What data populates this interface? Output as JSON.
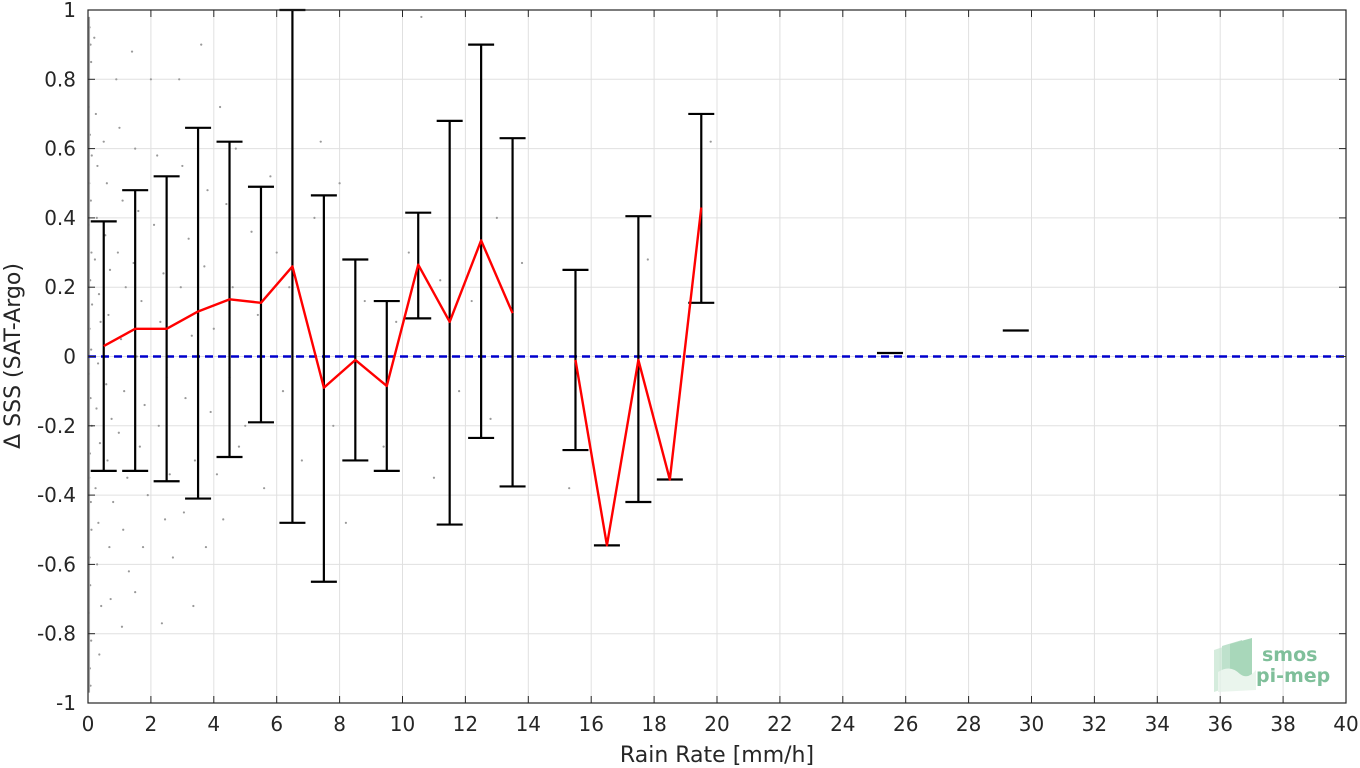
{
  "chart_data": {
    "type": "scatter",
    "xlabel": "Rain Rate [mm/h]",
    "ylabel": "Δ SSS (SAT-Argo)",
    "xlim": [
      0,
      40
    ],
    "ylim": [
      -1,
      1
    ],
    "xticks": [
      0,
      2,
      4,
      6,
      8,
      10,
      12,
      14,
      16,
      18,
      20,
      22,
      24,
      26,
      28,
      30,
      32,
      34,
      36,
      38,
      40
    ],
    "yticks": [
      -1,
      -0.8,
      -0.6,
      -0.4,
      -0.2,
      0,
      0.2,
      0.4,
      0.6,
      0.8,
      1
    ],
    "ytick_labels": [
      "-1",
      "-0.8",
      "-0.6",
      "-0.4",
      "-0.2",
      "0",
      "0.2",
      "0.4",
      "0.6",
      "0.8",
      "1"
    ],
    "grid": true,
    "reference_line": {
      "y": 0,
      "color": "#0000cc",
      "style": "dashed"
    },
    "colors": {
      "mean_line": "#ff0000",
      "error_bar": "#000000",
      "scatter": "#999999",
      "axis": "#262626",
      "grid": "#e0e0e0"
    },
    "error_bars": [
      {
        "x": 0.5,
        "mean": 0.03,
        "low": -0.33,
        "high": 0.39
      },
      {
        "x": 1.5,
        "mean": 0.08,
        "low": -0.33,
        "high": 0.48
      },
      {
        "x": 2.5,
        "mean": 0.08,
        "low": -0.36,
        "high": 0.52
      },
      {
        "x": 3.5,
        "mean": 0.13,
        "low": -0.41,
        "high": 0.66
      },
      {
        "x": 4.5,
        "mean": 0.165,
        "low": -0.29,
        "high": 0.62
      },
      {
        "x": 5.5,
        "mean": 0.155,
        "low": -0.19,
        "high": 0.49
      },
      {
        "x": 6.5,
        "mean": 0.26,
        "low": -0.48,
        "high": 1.0
      },
      {
        "x": 7.5,
        "mean": -0.09,
        "low": -0.65,
        "high": 0.465
      },
      {
        "x": 8.5,
        "mean": -0.01,
        "low": -0.3,
        "high": 0.28
      },
      {
        "x": 9.5,
        "mean": -0.085,
        "low": -0.33,
        "high": 0.16
      },
      {
        "x": 10.5,
        "mean": 0.265,
        "low": 0.11,
        "high": 0.415
      },
      {
        "x": 11.5,
        "mean": 0.1,
        "low": -0.485,
        "high": 0.68
      },
      {
        "x": 12.5,
        "mean": 0.335,
        "low": -0.235,
        "high": 0.9
      },
      {
        "x": 13.5,
        "mean": 0.125,
        "low": -0.375,
        "high": 0.63
      },
      {
        "x": 15.5,
        "mean": -0.01,
        "low": -0.27,
        "high": 0.25
      },
      {
        "x": 16.5,
        "mean": -0.545,
        "low": -0.545,
        "high": -0.545
      },
      {
        "x": 17.5,
        "mean": -0.01,
        "low": -0.42,
        "high": 0.405
      },
      {
        "x": 18.5,
        "mean": -0.355,
        "low": -0.355,
        "high": -0.355
      },
      {
        "x": 19.5,
        "mean": 0.43,
        "low": 0.155,
        "high": 0.7
      },
      {
        "x": 25.5,
        "mean": 0.01,
        "low": 0.01,
        "high": 0.01
      },
      {
        "x": 29.5,
        "mean": 0.075,
        "low": 0.075,
        "high": 0.075
      }
    ],
    "mean_line_segments": [
      [
        0,
        1,
        2,
        3,
        4,
        5,
        6,
        7,
        8,
        9,
        10,
        11,
        12,
        13
      ],
      [
        14,
        15,
        16,
        17,
        18
      ]
    ],
    "scatter_points": [
      [
        0.05,
        0.95
      ],
      [
        0.08,
        0.9
      ],
      [
        0.1,
        0.85
      ],
      [
        0.03,
        0.72
      ],
      [
        0.06,
        0.64
      ],
      [
        0.12,
        0.58
      ],
      [
        0.04,
        0.5
      ],
      [
        0.09,
        0.45
      ],
      [
        0.02,
        0.38
      ],
      [
        0.11,
        0.3
      ],
      [
        0.07,
        0.22
      ],
      [
        0.13,
        0.15
      ],
      [
        0.05,
        0.08
      ],
      [
        0.1,
        0.02
      ],
      [
        0.03,
        -0.05
      ],
      [
        0.08,
        -0.12
      ],
      [
        0.12,
        -0.2
      ],
      [
        0.06,
        -0.28
      ],
      [
        0.04,
        -0.35
      ],
      [
        0.09,
        -0.42
      ],
      [
        0.11,
        -0.5
      ],
      [
        0.05,
        -0.58
      ],
      [
        0.07,
        -0.66
      ],
      [
        0.03,
        -0.74
      ],
      [
        0.1,
        -0.82
      ],
      [
        0.06,
        -0.9
      ],
      [
        0.08,
        -0.95
      ],
      [
        0.2,
        0.92
      ],
      [
        0.25,
        0.7
      ],
      [
        0.3,
        0.55
      ],
      [
        0.28,
        0.4
      ],
      [
        0.22,
        0.28
      ],
      [
        0.35,
        0.18
      ],
      [
        0.4,
        0.1
      ],
      [
        0.32,
        -0.02
      ],
      [
        0.27,
        -0.15
      ],
      [
        0.38,
        -0.25
      ],
      [
        0.24,
        -0.38
      ],
      [
        0.33,
        -0.48
      ],
      [
        0.29,
        -0.6
      ],
      [
        0.42,
        -0.72
      ],
      [
        0.36,
        -0.86
      ],
      [
        0.5,
        0.62
      ],
      [
        0.6,
        0.5
      ],
      [
        0.55,
        0.35
      ],
      [
        0.7,
        0.25
      ],
      [
        0.65,
        0.12
      ],
      [
        0.58,
        -0.08
      ],
      [
        0.75,
        -0.18
      ],
      [
        0.62,
        -0.3
      ],
      [
        0.8,
        -0.42
      ],
      [
        0.68,
        -0.55
      ],
      [
        0.72,
        -0.7
      ],
      [
        0.9,
        0.8
      ],
      [
        1.0,
        0.66
      ],
      [
        1.1,
        0.45
      ],
      [
        0.95,
        0.3
      ],
      [
        1.2,
        0.2
      ],
      [
        1.05,
        0.05
      ],
      [
        1.15,
        -0.1
      ],
      [
        0.98,
        -0.22
      ],
      [
        1.25,
        -0.35
      ],
      [
        1.12,
        -0.5
      ],
      [
        1.3,
        -0.62
      ],
      [
        1.08,
        -0.78
      ],
      [
        1.4,
        0.88
      ],
      [
        1.5,
        0.6
      ],
      [
        1.6,
        0.42
      ],
      [
        1.45,
        0.27
      ],
      [
        1.7,
        0.16
      ],
      [
        1.55,
        0.0
      ],
      [
        1.8,
        -0.14
      ],
      [
        1.65,
        -0.26
      ],
      [
        1.9,
        -0.4
      ],
      [
        1.75,
        -0.55
      ],
      [
        1.5,
        -0.68
      ],
      [
        2.0,
        0.8
      ],
      [
        2.2,
        0.58
      ],
      [
        2.1,
        0.38
      ],
      [
        2.4,
        0.24
      ],
      [
        2.3,
        0.1
      ],
      [
        2.5,
        -0.06
      ],
      [
        2.25,
        -0.2
      ],
      [
        2.6,
        -0.34
      ],
      [
        2.45,
        -0.47
      ],
      [
        2.7,
        -0.58
      ],
      [
        2.35,
        -0.77
      ],
      [
        2.9,
        0.8
      ],
      [
        3.0,
        0.55
      ],
      [
        3.2,
        0.34
      ],
      [
        2.95,
        0.2
      ],
      [
        3.3,
        0.06
      ],
      [
        3.1,
        -0.12
      ],
      [
        3.4,
        -0.3
      ],
      [
        3.05,
        -0.45
      ],
      [
        3.35,
        -0.72
      ],
      [
        3.6,
        0.9
      ],
      [
        3.8,
        0.48
      ],
      [
        3.7,
        0.26
      ],
      [
        4.0,
        0.08
      ],
      [
        3.9,
        -0.16
      ],
      [
        4.1,
        -0.34
      ],
      [
        3.75,
        -0.55
      ],
      [
        4.2,
        0.72
      ],
      [
        4.4,
        0.44
      ],
      [
        4.6,
        0.2
      ],
      [
        4.5,
        -0.06
      ],
      [
        4.8,
        -0.26
      ],
      [
        4.3,
        -0.47
      ],
      [
        4.7,
        0.6
      ],
      [
        5.2,
        0.36
      ],
      [
        5.4,
        0.12
      ],
      [
        5.0,
        -0.2
      ],
      [
        5.6,
        -0.38
      ],
      [
        5.8,
        0.52
      ],
      [
        6.0,
        0.3
      ],
      [
        6.2,
        -0.1
      ],
      [
        6.4,
        0.2
      ],
      [
        6.8,
        -0.3
      ],
      [
        7.2,
        0.4
      ],
      [
        7.8,
        -0.2
      ],
      [
        8.0,
        0.5
      ],
      [
        8.2,
        -0.48
      ],
      [
        8.8,
        0.16
      ],
      [
        9.4,
        -0.26
      ],
      [
        10.2,
        0.3
      ],
      [
        10.6,
        0.98
      ],
      [
        11.2,
        0.22
      ],
      [
        11.8,
        -0.1
      ],
      [
        12.2,
        0.16
      ],
      [
        13.0,
        0.4
      ],
      [
        13.8,
        0.27
      ],
      [
        15.3,
        -0.38
      ],
      [
        17.8,
        0.28
      ],
      [
        19.8,
        0.62
      ],
      [
        7.4,
        0.62
      ],
      [
        9.8,
        0.1
      ],
      [
        12.8,
        -0.18
      ],
      [
        11.0,
        -0.35
      ]
    ]
  },
  "logo": {
    "line1": "smos",
    "line2": "pi-mep"
  }
}
